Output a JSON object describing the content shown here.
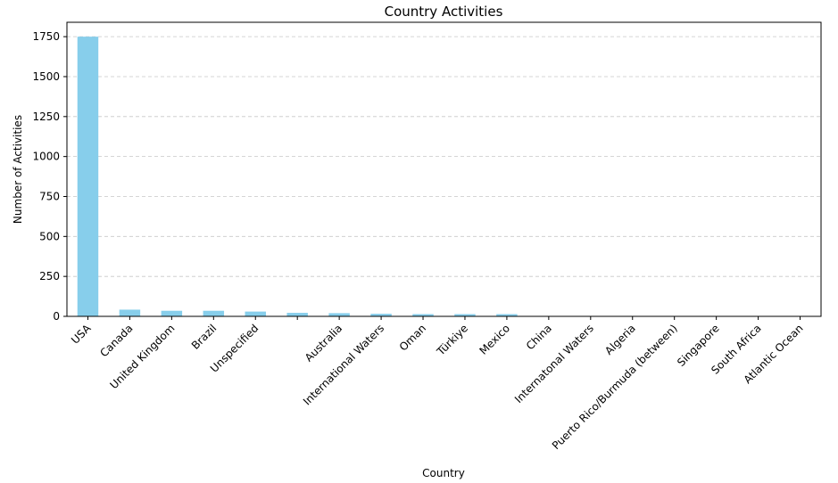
{
  "chart_data": {
    "type": "bar",
    "title": "Country Activities",
    "xlabel": "Country",
    "ylabel": "Number of Activities",
    "categories": [
      "USA",
      "Canada",
      "United Kingdom",
      "Brazil",
      "Unspecified",
      "",
      "Australia",
      "International Waters",
      "Oman",
      "Türkiye",
      "Mexico",
      "China",
      "Internatonal Waters",
      "Algeria",
      "Puerto Rico/Burmuda (between)",
      "Singapore",
      "South Africa",
      "Atlantic Ocean"
    ],
    "values": [
      1750,
      42,
      35,
      35,
      30,
      22,
      20,
      16,
      14,
      14,
      14,
      2,
      1,
      1,
      1,
      1,
      1,
      1
    ],
    "ylim": [
      0,
      1840
    ],
    "yticks": [
      0,
      250,
      500,
      750,
      1000,
      1250,
      1500,
      1750
    ],
    "grid": "y-dashed",
    "bar_color": "#87ceeb",
    "legend": "none"
  }
}
